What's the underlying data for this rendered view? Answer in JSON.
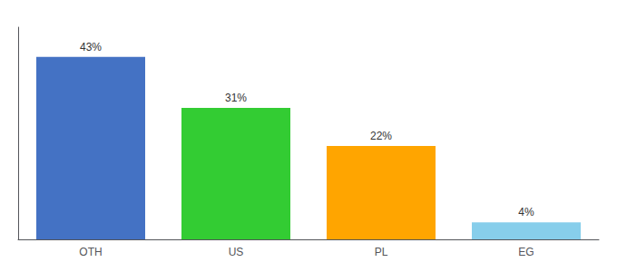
{
  "chart_data": {
    "type": "bar",
    "categories": [
      "OTH",
      "US",
      "PL",
      "EG"
    ],
    "values": [
      43,
      31,
      22,
      4
    ],
    "value_labels": [
      "43%",
      "31%",
      "22%",
      "4%"
    ],
    "colors": [
      "#4472C4",
      "#33CC33",
      "#FFA500",
      "#87CEEB"
    ],
    "ylim": [
      0,
      50
    ],
    "data_labels": true,
    "tick_labels": "x",
    "grid": false
  }
}
